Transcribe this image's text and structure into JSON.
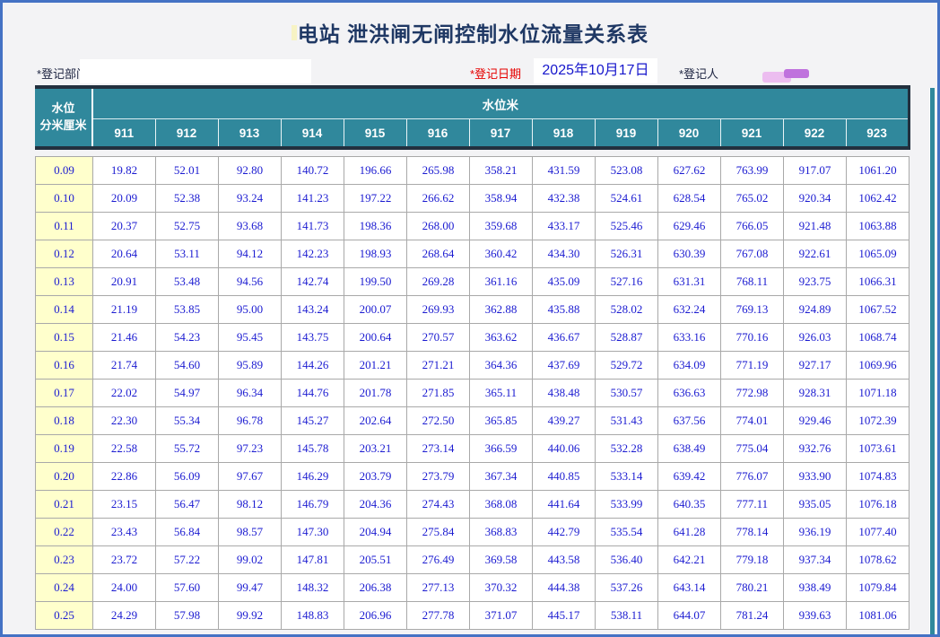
{
  "title": "电站  泄洪闸无闸控制水位流量关系表",
  "form": {
    "department_label": "*登记部门",
    "department_value": "",
    "date_label": "*登记日期",
    "date_value": "2025年10月17日",
    "registrant_label": "*登记人"
  },
  "table": {
    "corner_header_line1": "水位",
    "corner_header_line2": "分米厘米",
    "span_header": "水位米",
    "columns": [
      "911",
      "912",
      "913",
      "914",
      "915",
      "916",
      "917",
      "918",
      "919",
      "920",
      "921",
      "922",
      "923"
    ],
    "rows": [
      {
        "level": "0.09",
        "values": [
          "19.82",
          "52.01",
          "92.80",
          "140.72",
          "196.66",
          "265.98",
          "358.21",
          "431.59",
          "523.08",
          "627.62",
          "763.99",
          "917.07",
          "1061.20"
        ]
      },
      {
        "level": "0.10",
        "values": [
          "20.09",
          "52.38",
          "93.24",
          "141.23",
          "197.22",
          "266.62",
          "358.94",
          "432.38",
          "524.61",
          "628.54",
          "765.02",
          "920.34",
          "1062.42"
        ]
      },
      {
        "level": "0.11",
        "values": [
          "20.37",
          "52.75",
          "93.68",
          "141.73",
          "198.36",
          "268.00",
          "359.68",
          "433.17",
          "525.46",
          "629.46",
          "766.05",
          "921.48",
          "1063.88"
        ]
      },
      {
        "level": "0.12",
        "values": [
          "20.64",
          "53.11",
          "94.12",
          "142.23",
          "198.93",
          "268.64",
          "360.42",
          "434.30",
          "526.31",
          "630.39",
          "767.08",
          "922.61",
          "1065.09"
        ]
      },
      {
        "level": "0.13",
        "values": [
          "20.91",
          "53.48",
          "94.56",
          "142.74",
          "199.50",
          "269.28",
          "361.16",
          "435.09",
          "527.16",
          "631.31",
          "768.11",
          "923.75",
          "1066.31"
        ]
      },
      {
        "level": "0.14",
        "values": [
          "21.19",
          "53.85",
          "95.00",
          "143.24",
          "200.07",
          "269.93",
          "362.88",
          "435.88",
          "528.02",
          "632.24",
          "769.13",
          "924.89",
          "1067.52"
        ]
      },
      {
        "level": "0.15",
        "values": [
          "21.46",
          "54.23",
          "95.45",
          "143.75",
          "200.64",
          "270.57",
          "363.62",
          "436.67",
          "528.87",
          "633.16",
          "770.16",
          "926.03",
          "1068.74"
        ]
      },
      {
        "level": "0.16",
        "values": [
          "21.74",
          "54.60",
          "95.89",
          "144.26",
          "201.21",
          "271.21",
          "364.36",
          "437.69",
          "529.72",
          "634.09",
          "771.19",
          "927.17",
          "1069.96"
        ]
      },
      {
        "level": "0.17",
        "values": [
          "22.02",
          "54.97",
          "96.34",
          "144.76",
          "201.78",
          "271.85",
          "365.11",
          "438.48",
          "530.57",
          "636.63",
          "772.98",
          "928.31",
          "1071.18"
        ]
      },
      {
        "level": "0.18",
        "values": [
          "22.30",
          "55.34",
          "96.78",
          "145.27",
          "202.64",
          "272.50",
          "365.85",
          "439.27",
          "531.43",
          "637.56",
          "774.01",
          "929.46",
          "1072.39"
        ]
      },
      {
        "level": "0.19",
        "values": [
          "22.58",
          "55.72",
          "97.23",
          "145.78",
          "203.21",
          "273.14",
          "366.59",
          "440.06",
          "532.28",
          "638.49",
          "775.04",
          "932.76",
          "1073.61"
        ]
      },
      {
        "level": "0.20",
        "values": [
          "22.86",
          "56.09",
          "97.67",
          "146.29",
          "203.79",
          "273.79",
          "367.34",
          "440.85",
          "533.14",
          "639.42",
          "776.07",
          "933.90",
          "1074.83"
        ]
      },
      {
        "level": "0.21",
        "values": [
          "23.15",
          "56.47",
          "98.12",
          "146.79",
          "204.36",
          "274.43",
          "368.08",
          "441.64",
          "533.99",
          "640.35",
          "777.11",
          "935.05",
          "1076.18"
        ]
      },
      {
        "level": "0.22",
        "values": [
          "23.43",
          "56.84",
          "98.57",
          "147.30",
          "204.94",
          "275.84",
          "368.83",
          "442.79",
          "535.54",
          "641.28",
          "778.14",
          "936.19",
          "1077.40"
        ]
      },
      {
        "level": "0.23",
        "values": [
          "23.72",
          "57.22",
          "99.02",
          "147.81",
          "205.51",
          "276.49",
          "369.58",
          "443.58",
          "536.40",
          "642.21",
          "779.18",
          "937.34",
          "1078.62"
        ]
      },
      {
        "level": "0.24",
        "values": [
          "24.00",
          "57.60",
          "99.47",
          "148.32",
          "206.38",
          "277.13",
          "370.32",
          "444.38",
          "537.26",
          "643.14",
          "780.21",
          "938.49",
          "1079.84"
        ]
      },
      {
        "level": "0.25",
        "values": [
          "24.29",
          "57.98",
          "99.92",
          "148.83",
          "206.96",
          "277.78",
          "371.07",
          "445.17",
          "538.11",
          "644.07",
          "781.24",
          "939.63",
          "1081.06"
        ]
      }
    ]
  },
  "colors": {
    "header_teal": "#30889c",
    "header_dark_border": "#22303e",
    "window_border_blue": "#4472c4",
    "data_text_blue": "#1b1bd1",
    "level_column_yellow": "#ffffcc",
    "date_label_red": "#e60000",
    "title_navy": "#1f3864",
    "signature_light": "#ecbdf0",
    "signature_dark": "#bf72dd"
  }
}
